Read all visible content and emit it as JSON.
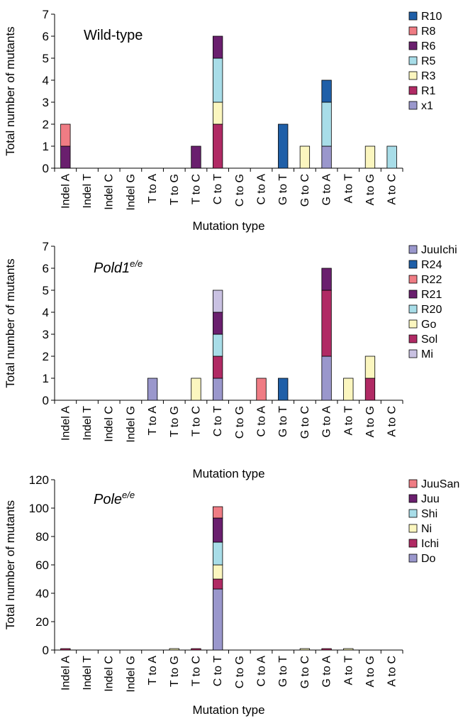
{
  "colors": {
    "R10": "#1f5fa8",
    "R8": "#ef7c84",
    "R6": "#6a1f6e",
    "R5": "#a8dde8",
    "R3": "#fbf6bf",
    "R1": "#b02a64",
    "x1": "#9a97cc",
    "JuuIchi": "#9a97cc",
    "R24": "#1f5fa8",
    "R22": "#ef7c84",
    "R21": "#6a1f6e",
    "R20": "#a8dde8",
    "Go": "#fbf6bf",
    "Sol": "#b02a64",
    "Mi": "#c9c1e2",
    "JuuSan": "#ef7c84",
    "Juu": "#6a1f6e",
    "Shi": "#a8dde8",
    "Ni": "#fbf6bf",
    "Ichi": "#b02a64",
    "Do": "#9a97cc"
  },
  "chart_data": [
    {
      "type": "bar",
      "stacked": true,
      "annotation": "Wild-type",
      "annotation_superscript": "",
      "xlabel": "Mutation type",
      "ylabel": "Total number of mutants",
      "ylim": [
        0,
        7
      ],
      "yticks": [
        "0",
        "1",
        "2",
        "3",
        "4",
        "5",
        "6",
        "7"
      ],
      "grid": false,
      "legend_position": "right",
      "categories": [
        "Indel A",
        "Indel T",
        "Indel C",
        "Indel G",
        "T to A",
        "T to G",
        "T to C",
        "C to T",
        "C to G",
        "C to A",
        "G to T",
        "G to C",
        "G to A",
        "A to T",
        "A to G",
        "A to C"
      ],
      "series": [
        {
          "name": "x1",
          "values": [
            0,
            0,
            0,
            0,
            0,
            0,
            0,
            0,
            0,
            0,
            0,
            0,
            1,
            0,
            0,
            0
          ]
        },
        {
          "name": "R1",
          "values": [
            0,
            0,
            0,
            0,
            0,
            0,
            0,
            2,
            0,
            0,
            0,
            0,
            0,
            0,
            0,
            0
          ]
        },
        {
          "name": "R3",
          "values": [
            0,
            0,
            0,
            0,
            0,
            0,
            0,
            1,
            0,
            0,
            0,
            1,
            0,
            0,
            1,
            0
          ]
        },
        {
          "name": "R5",
          "values": [
            0,
            0,
            0,
            0,
            0,
            0,
            0,
            2,
            0,
            0,
            0,
            0,
            2,
            0,
            0,
            1
          ]
        },
        {
          "name": "R6",
          "values": [
            1,
            0,
            0,
            0,
            0,
            0,
            1,
            1,
            0,
            0,
            0,
            0,
            0,
            0,
            0,
            0
          ]
        },
        {
          "name": "R8",
          "values": [
            1,
            0,
            0,
            0,
            0,
            0,
            0,
            0,
            0,
            0,
            0,
            0,
            0,
            0,
            0,
            0
          ]
        },
        {
          "name": "R10",
          "values": [
            0,
            0,
            0,
            0,
            0,
            0,
            0,
            0,
            0,
            0,
            2,
            0,
            1,
            0,
            0,
            0
          ]
        }
      ],
      "legend": [
        "R10",
        "R8",
        "R6",
        "R5",
        "R3",
        "R1",
        "x1"
      ]
    },
    {
      "type": "bar",
      "stacked": true,
      "annotation": "Pold1",
      "annotation_superscript": "e/e",
      "xlabel": "Mutation type",
      "ylabel": "Total number of mutants",
      "ylim": [
        0,
        7
      ],
      "yticks": [
        "0",
        "1",
        "2",
        "3",
        "4",
        "5",
        "6",
        "7"
      ],
      "grid": false,
      "legend_position": "right",
      "categories": [
        "Indel A",
        "Indel T",
        "Indel C",
        "Indel G",
        "T to A",
        "T to G",
        "T to C",
        "C to T",
        "C to G",
        "C to A",
        "G to T",
        "G to C",
        "G to A",
        "A to T",
        "A to G",
        "A to C"
      ],
      "series": [
        {
          "name": "JuuIchi",
          "values": [
            0,
            0,
            0,
            0,
            1,
            0,
            0,
            1,
            0,
            0,
            0,
            0,
            2,
            0,
            0,
            0
          ]
        },
        {
          "name": "Sol",
          "values": [
            0,
            0,
            0,
            0,
            0,
            0,
            0,
            1,
            0,
            0,
            0,
            0,
            3,
            0,
            1,
            0
          ]
        },
        {
          "name": "Go",
          "values": [
            0,
            0,
            0,
            0,
            0,
            0,
            1,
            0,
            0,
            0,
            0,
            0,
            0,
            1,
            1,
            0
          ]
        },
        {
          "name": "R20",
          "values": [
            0,
            0,
            0,
            0,
            0,
            0,
            0,
            1,
            0,
            0,
            0,
            0,
            0,
            0,
            0,
            0
          ]
        },
        {
          "name": "R21",
          "values": [
            0,
            0,
            0,
            0,
            0,
            0,
            0,
            1,
            0,
            0,
            0,
            0,
            1,
            0,
            0,
            0
          ]
        },
        {
          "name": "Mi",
          "values": [
            0,
            0,
            0,
            0,
            0,
            0,
            0,
            1,
            0,
            0,
            0,
            0,
            0,
            0,
            0,
            0
          ]
        },
        {
          "name": "R22",
          "values": [
            0,
            0,
            0,
            0,
            0,
            0,
            0,
            0,
            0,
            1,
            0,
            0,
            0,
            0,
            0,
            0
          ]
        },
        {
          "name": "R24",
          "values": [
            0,
            0,
            0,
            0,
            0,
            0,
            0,
            0,
            0,
            0,
            1,
            0,
            0,
            0,
            0,
            0
          ]
        }
      ],
      "legend": [
        "JuuIchi",
        "R24",
        "R22",
        "R21",
        "R20",
        "Go",
        "Sol",
        "Mi"
      ]
    },
    {
      "type": "bar",
      "stacked": true,
      "annotation": "Pole",
      "annotation_superscript": "e/e",
      "xlabel": "Mutation type",
      "ylabel": "Total number of mutants",
      "ylim": [
        0,
        120
      ],
      "yticks": [
        "0",
        "20",
        "40",
        "60",
        "80",
        "100",
        "120"
      ],
      "grid": false,
      "legend_position": "right",
      "categories": [
        "Indel A",
        "Indel T",
        "Indel C",
        "Indel G",
        "T to A",
        "T to G",
        "T to C",
        "C to T",
        "C to G",
        "C to A",
        "G to T",
        "G to C",
        "G to A",
        "A to T",
        "A to G",
        "A to C"
      ],
      "series": [
        {
          "name": "Do",
          "values": [
            0,
            0,
            0,
            0,
            0,
            0,
            0,
            43,
            0,
            0,
            0,
            0,
            0,
            0,
            0,
            0
          ]
        },
        {
          "name": "Ichi",
          "values": [
            1,
            0,
            0,
            0,
            0,
            0,
            1,
            7,
            0,
            0,
            0,
            0,
            1,
            0,
            0,
            0
          ]
        },
        {
          "name": "Ni",
          "values": [
            0,
            0,
            0,
            0,
            0,
            1,
            0,
            10,
            0,
            0,
            0,
            1,
            0,
            1,
            0,
            0
          ]
        },
        {
          "name": "Shi",
          "values": [
            0,
            0,
            0,
            0,
            0,
            0,
            0,
            16,
            0,
            0,
            0,
            0,
            0,
            0,
            0,
            0
          ]
        },
        {
          "name": "Juu",
          "values": [
            0,
            0,
            0,
            0,
            0,
            0,
            0,
            17,
            0,
            0,
            0,
            0,
            0,
            0,
            0,
            0
          ]
        },
        {
          "name": "JuuSan",
          "values": [
            0,
            0,
            0,
            0,
            0,
            0,
            0,
            8,
            0,
            0,
            0,
            0,
            0,
            0,
            0,
            0
          ]
        }
      ],
      "legend": [
        "JuuSan",
        "Juu",
        "Shi",
        "Ni",
        "Ichi",
        "Do"
      ]
    }
  ]
}
